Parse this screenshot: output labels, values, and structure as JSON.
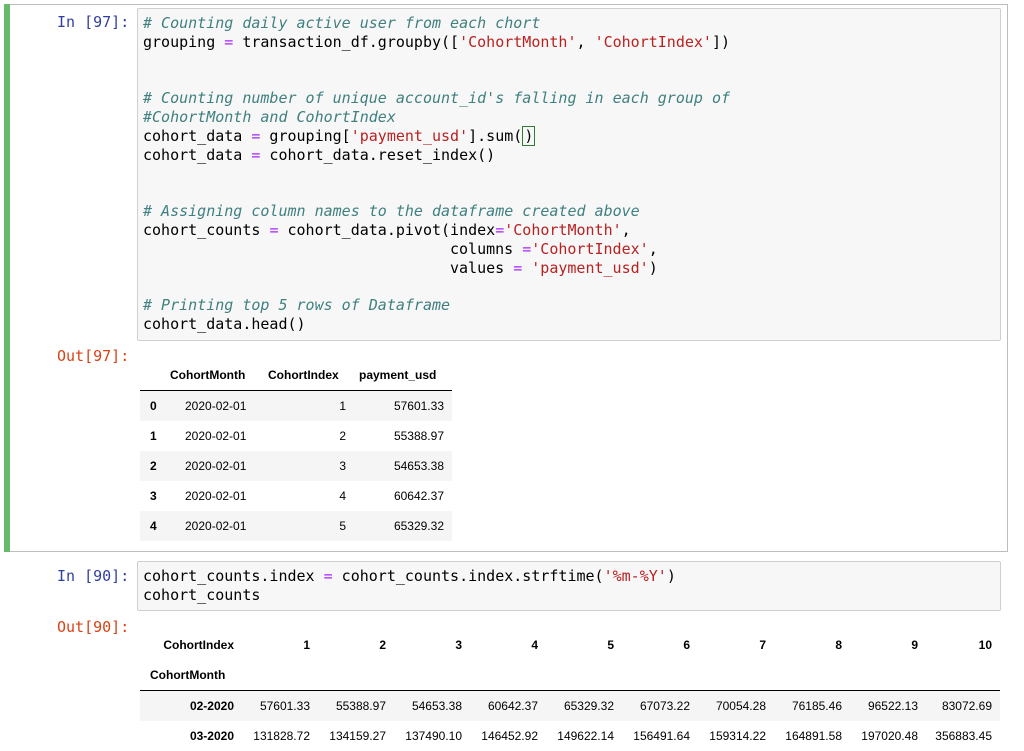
{
  "cell1": {
    "in_prompt": "In [97]:",
    "out_prompt": "Out[97]:",
    "code": {
      "l1_comment": "# Counting daily active user from each chort",
      "l2_a": "grouping ",
      "l2_op": "=",
      "l2_b": " transaction_df.groupby([",
      "l2_s1": "'CohortMonth'",
      "l2_c": ", ",
      "l2_s2": "'CohortIndex'",
      "l2_d": "])",
      "l4_comment": "# Counting number of unique account_id's falling in each group of",
      "l5_comment": "#CohortMonth and CohortIndex",
      "l6_a": "cohort_data ",
      "l6_op": "=",
      "l6_b": " grouping[",
      "l6_s": "'payment_usd'",
      "l6_c": "].sum(",
      "l6_d": ")",
      "l7_a": "cohort_data ",
      "l7_op": "=",
      "l7_b": " cohort_data.reset_index()",
      "l9_comment": "# Assigning column names to the dataframe created above",
      "l10_a": "cohort_counts ",
      "l10_op": "=",
      "l10_b": " cohort_data.pivot(index",
      "l10_op2": "=",
      "l10_s": "'CohortMonth'",
      "l10_c": ",",
      "l11_a": "columns ",
      "l11_op": "=",
      "l11_s": "'CohortIndex'",
      "l11_c": ",",
      "l12_a": "values ",
      "l12_op": "=",
      "l12_s": " 'payment_usd'",
      "l12_c": ")",
      "l14_comment": "# Printing top 5 rows of Dataframe",
      "l15": "cohort_data.head()"
    },
    "table": {
      "headers": [
        "CohortMonth",
        "CohortIndex",
        "payment_usd"
      ],
      "rows": [
        {
          "idx": "0",
          "month": "2020-02-01",
          "index": "1",
          "usd": "57601.33"
        },
        {
          "idx": "1",
          "month": "2020-02-01",
          "index": "2",
          "usd": "55388.97"
        },
        {
          "idx": "2",
          "month": "2020-02-01",
          "index": "3",
          "usd": "54653.38"
        },
        {
          "idx": "3",
          "month": "2020-02-01",
          "index": "4",
          "usd": "60642.37"
        },
        {
          "idx": "4",
          "month": "2020-02-01",
          "index": "5",
          "usd": "65329.32"
        }
      ]
    }
  },
  "cell2": {
    "in_prompt": "In [90]:",
    "out_prompt": "Out[90]:",
    "code": {
      "l1_a": "cohort_counts.index ",
      "l1_op": "=",
      "l1_b": " cohort_counts.index.strftime(",
      "l1_s": "'%m-%Y'",
      "l1_c": ")",
      "l2": "cohort_counts"
    },
    "table": {
      "columns_name": "CohortIndex",
      "index_name": "CohortMonth",
      "columns": [
        "1",
        "2",
        "3",
        "4",
        "5",
        "6",
        "7",
        "8",
        "9",
        "10"
      ],
      "rows": [
        {
          "label": "02-2020",
          "values": [
            "57601.33",
            "55388.97",
            "54653.38",
            "60642.37",
            "65329.32",
            "67073.22",
            "70054.28",
            "76185.46",
            "96522.13",
            "83072.69"
          ]
        },
        {
          "label": "03-2020",
          "values": [
            "131828.72",
            "134159.27",
            "137490.10",
            "146452.92",
            "149622.14",
            "156491.64",
            "159314.22",
            "164891.58",
            "197020.48",
            "356883.45"
          ]
        }
      ]
    }
  },
  "colors": {
    "selection_bar": "#66bb6a",
    "in_prompt": "#303f9f",
    "out_prompt": "#d84315",
    "comment": "#408080",
    "string": "#ba2121",
    "operator": "#aa22ff",
    "row_stripe": "#f5f5f5"
  }
}
